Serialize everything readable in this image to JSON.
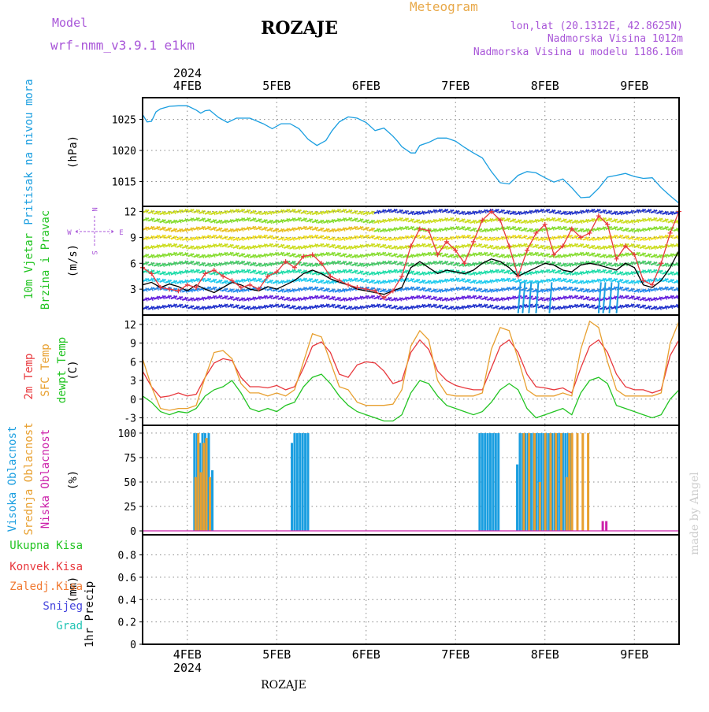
{
  "header": {
    "model_label": "Model",
    "model_name": "wrf-nmm_v3.9.1 e1km",
    "title": "ROZAJE",
    "meteogram": "Meteogram",
    "lonlat": "lon,lat (20.1312E, 42.8625N)",
    "altitude": "Nadmorska Visina 1012m",
    "model_altitude": "Nadmorska Visina u modelu 1186.16m",
    "year_top": "2024",
    "footer_name": "ROZAJE",
    "credit": "made by Angel"
  },
  "colors": {
    "pressure": "#1a9ee0",
    "temp2m": "#e8383d",
    "sfc": "#e8a030",
    "dewpt": "#22c422",
    "high_cloud": "#1a9ee0",
    "mid_cloud": "#e8a030",
    "low_cloud": "#cc22aa",
    "label_purple": "#a855d8",
    "label_orange": "#e8a848"
  },
  "chart_data": [
    {
      "panel": "pressure",
      "type": "line",
      "ylabel_lines": [
        "Pritisak na nivou mora"
      ],
      "unit": "(hPa)",
      "yticks": [
        1015,
        1020,
        1025
      ],
      "ylim": [
        1011,
        1028.5
      ],
      "x_days": [
        "4FEB",
        "5FEB",
        "6FEB",
        "7FEB",
        "8FEB",
        "9FEB"
      ],
      "xlim_days": [
        -0.5,
        5.5
      ],
      "grid": true,
      "series": [
        {
          "color": "#1a9ee0",
          "x": [
            -0.5,
            -0.45,
            -0.4,
            -0.35,
            -0.3,
            -0.2,
            -0.1,
            0.0,
            0.1,
            0.15,
            0.2,
            0.25,
            0.35,
            0.45,
            0.55,
            0.7,
            0.85,
            0.95,
            1.05,
            1.15,
            1.25,
            1.35,
            1.45,
            1.55,
            1.62,
            1.7,
            1.8,
            1.9,
            2.0,
            2.1,
            2.2,
            2.3,
            2.35,
            2.4,
            2.5,
            2.55,
            2.6,
            2.7,
            2.8,
            2.9,
            3.0,
            3.1,
            3.2,
            3.3,
            3.4,
            3.5,
            3.6,
            3.7,
            3.8,
            3.9,
            4.0,
            4.1,
            4.2,
            4.3,
            4.35,
            4.4,
            4.5,
            4.6,
            4.7,
            4.8,
            4.9,
            5.0,
            5.1,
            5.2,
            5.3,
            5.4,
            5.5
          ],
          "y": [
            1025.8,
            1024.6,
            1024.7,
            1026.2,
            1026.7,
            1027.1,
            1027.2,
            1027.2,
            1026.5,
            1026.0,
            1026.4,
            1026.5,
            1025.3,
            1024.5,
            1025.2,
            1025.2,
            1024.3,
            1023.5,
            1024.3,
            1024.3,
            1023.5,
            1021.8,
            1020.8,
            1021.6,
            1023.2,
            1024.6,
            1025.4,
            1025.2,
            1024.5,
            1023.2,
            1023.6,
            1022.3,
            1021.5,
            1020.6,
            1019.6,
            1019.6,
            1020.8,
            1021.3,
            1022.0,
            1022.0,
            1021.5,
            1020.5,
            1019.6,
            1018.8,
            1016.6,
            1014.8,
            1014.6,
            1016.0,
            1016.6,
            1016.4,
            1015.6,
            1014.9,
            1015.4,
            1014.0,
            1013.2,
            1012.4,
            1012.5,
            1013.9,
            1015.7,
            1016.0,
            1016.3,
            1015.8,
            1015.5,
            1015.6,
            1014.0,
            1012.7,
            1011.5
          ]
        }
      ]
    },
    {
      "panel": "wind",
      "type": "line",
      "ylabel_lines": [
        "10m Vjetar",
        "Brzina i Pravac"
      ],
      "unit": "(m/s)",
      "compass": {
        "n": "N",
        "s": "S",
        "w": "W",
        "e": "E"
      },
      "yticks": [
        3,
        6,
        9,
        12
      ],
      "ylim": [
        0,
        12.6
      ],
      "grid": true,
      "series": [
        {
          "name": "speed",
          "color": "#000000",
          "x": [
            -0.5,
            -0.4,
            -0.3,
            -0.2,
            -0.1,
            0.0,
            0.1,
            0.2,
            0.3,
            0.4,
            0.5,
            0.6,
            0.7,
            0.8,
            0.9,
            1.0,
            1.1,
            1.2,
            1.3,
            1.4,
            1.5,
            1.6,
            1.7,
            1.8,
            1.9,
            2.0,
            2.1,
            2.2,
            2.3,
            2.4,
            2.5,
            2.6,
            2.7,
            2.8,
            2.9,
            3.0,
            3.1,
            3.2,
            3.3,
            3.4,
            3.5,
            3.6,
            3.7,
            3.8,
            3.9,
            4.0,
            4.1,
            4.2,
            4.3,
            4.4,
            4.5,
            4.6,
            4.7,
            4.8,
            4.9,
            5.0,
            5.1,
            5.2,
            5.3,
            5.4,
            5.5
          ],
          "y": [
            3.5,
            3.8,
            3.2,
            3.6,
            3.3,
            2.8,
            3.5,
            3.0,
            2.6,
            3.2,
            3.8,
            3.5,
            3.0,
            2.8,
            3.3,
            3.0,
            3.5,
            4.0,
            4.8,
            5.2,
            4.8,
            4.2,
            3.8,
            3.5,
            3.0,
            2.8,
            2.6,
            2.4,
            2.8,
            3.2,
            5.5,
            6.2,
            5.5,
            4.8,
            5.2,
            5.0,
            4.8,
            5.2,
            6.0,
            6.5,
            6.2,
            5.5,
            4.5,
            5.0,
            5.5,
            6.0,
            5.8,
            5.2,
            5.0,
            5.8,
            6.0,
            5.8,
            5.5,
            5.2,
            6.0,
            5.5,
            3.5,
            3.2,
            4.0,
            5.5,
            7.5
          ]
        },
        {
          "name": "gust",
          "color": "#e8383d",
          "x": [
            -0.5,
            -0.4,
            -0.3,
            -0.2,
            -0.1,
            0.0,
            0.1,
            0.2,
            0.3,
            0.4,
            0.5,
            0.6,
            0.7,
            0.8,
            0.9,
            1.0,
            1.1,
            1.2,
            1.3,
            1.4,
            1.5,
            1.6,
            1.7,
            1.8,
            1.9,
            2.0,
            2.1,
            2.2,
            2.3,
            2.4,
            2.5,
            2.6,
            2.7,
            2.8,
            2.9,
            3.0,
            3.1,
            3.2,
            3.3,
            3.4,
            3.5,
            3.6,
            3.7,
            3.8,
            3.9,
            4.0,
            4.1,
            4.2,
            4.3,
            4.4,
            4.5,
            4.6,
            4.7,
            4.8,
            4.9,
            5.0,
            5.1,
            5.2,
            5.3,
            5.4,
            5.5
          ],
          "y": [
            5.5,
            4.8,
            3.2,
            3.0,
            2.8,
            3.5,
            3.2,
            4.8,
            5.2,
            4.5,
            4.0,
            3.2,
            3.5,
            3.0,
            4.5,
            5.0,
            6.2,
            5.5,
            6.8,
            7.0,
            6.0,
            4.5,
            4.0,
            3.5,
            3.2,
            3.0,
            2.8,
            2.0,
            2.8,
            4.5,
            8.0,
            10.0,
            9.8,
            7.0,
            8.5,
            7.5,
            6.0,
            8.5,
            11.0,
            12.0,
            11.0,
            8.0,
            4.5,
            7.5,
            9.5,
            10.5,
            7.0,
            8.0,
            10.0,
            9.0,
            9.5,
            11.5,
            10.5,
            6.5,
            8.0,
            7.0,
            4.0,
            3.5,
            6.0,
            9.5,
            12.0
          ]
        }
      ]
    },
    {
      "panel": "temperature",
      "type": "line",
      "ylabel_lines": [
        "2m Temp",
        "SFC Temp",
        "dewpt Temp"
      ],
      "unit": "(C)",
      "yticks": [
        -3,
        0,
        3,
        6,
        9,
        12
      ],
      "ylim": [
        -4.2,
        13.5
      ],
      "grid": true,
      "series": [
        {
          "name": "2m Temp",
          "color": "#e8383d",
          "x": [
            -0.5,
            -0.4,
            -0.3,
            -0.2,
            -0.1,
            0.0,
            0.1,
            0.2,
            0.3,
            0.4,
            0.5,
            0.6,
            0.7,
            0.8,
            0.9,
            1.0,
            1.1,
            1.2,
            1.3,
            1.4,
            1.5,
            1.6,
            1.7,
            1.8,
            1.9,
            2.0,
            2.1,
            2.2,
            2.3,
            2.4,
            2.5,
            2.6,
            2.7,
            2.8,
            2.9,
            3.0,
            3.1,
            3.2,
            3.3,
            3.4,
            3.5,
            3.6,
            3.7,
            3.8,
            3.9,
            4.0,
            4.1,
            4.2,
            4.3,
            4.4,
            4.5,
            4.6,
            4.7,
            4.8,
            4.9,
            5.0,
            5.1,
            5.2,
            5.3,
            5.4,
            5.5
          ],
          "y": [
            4.5,
            2.0,
            0.3,
            0.5,
            1.0,
            0.5,
            0.8,
            3.5,
            5.8,
            6.5,
            6.2,
            3.5,
            2.0,
            2.0,
            1.8,
            2.2,
            1.5,
            2.0,
            5.0,
            8.5,
            9.2,
            7.5,
            4.0,
            3.5,
            5.5,
            6.0,
            5.8,
            4.5,
            2.5,
            3.0,
            7.5,
            9.5,
            8.0,
            4.5,
            3.0,
            2.2,
            1.8,
            1.5,
            1.5,
            5.0,
            8.5,
            9.5,
            7.5,
            4.0,
            2.0,
            1.8,
            1.5,
            1.8,
            1.0,
            5.0,
            8.5,
            9.5,
            7.5,
            4.0,
            2.0,
            1.5,
            1.5,
            1.0,
            1.5,
            7.0,
            9.5
          ]
        },
        {
          "name": "SFC Temp",
          "color": "#e8a030",
          "x": [
            -0.5,
            -0.4,
            -0.3,
            -0.2,
            -0.1,
            0.0,
            0.1,
            0.2,
            0.3,
            0.4,
            0.5,
            0.6,
            0.7,
            0.8,
            0.9,
            1.0,
            1.1,
            1.2,
            1.3,
            1.4,
            1.5,
            1.6,
            1.7,
            1.8,
            1.9,
            2.0,
            2.1,
            2.2,
            2.3,
            2.4,
            2.5,
            2.6,
            2.7,
            2.8,
            2.9,
            3.0,
            3.1,
            3.2,
            3.3,
            3.4,
            3.5,
            3.6,
            3.7,
            3.8,
            3.9,
            4.0,
            4.1,
            4.2,
            4.3,
            4.4,
            4.5,
            4.6,
            4.7,
            4.8,
            4.9,
            5.0,
            5.1,
            5.2,
            5.3,
            5.4,
            5.5
          ],
          "y": [
            6.5,
            2.0,
            -1.5,
            -1.8,
            -1.5,
            -1.5,
            -1.0,
            3.5,
            7.5,
            7.8,
            6.5,
            2.5,
            1.0,
            1.0,
            0.5,
            1.0,
            0.5,
            1.5,
            6.0,
            10.5,
            10.0,
            6.0,
            2.0,
            1.5,
            -0.5,
            -1.0,
            -1.0,
            -1.0,
            -0.8,
            1.5,
            8.5,
            11.0,
            9.5,
            3.0,
            0.8,
            0.5,
            0.5,
            0.5,
            1.0,
            8.0,
            11.5,
            11.0,
            6.5,
            1.5,
            0.5,
            0.5,
            0.5,
            1.0,
            0.5,
            8.0,
            12.5,
            11.5,
            6.0,
            1.5,
            0.5,
            0.5,
            0.5,
            0.5,
            1.0,
            9.0,
            12.5
          ]
        },
        {
          "name": "dewpt Temp",
          "color": "#22c422",
          "x": [
            -0.5,
            -0.4,
            -0.3,
            -0.2,
            -0.1,
            0.0,
            0.1,
            0.2,
            0.3,
            0.4,
            0.5,
            0.6,
            0.7,
            0.8,
            0.9,
            1.0,
            1.1,
            1.2,
            1.3,
            1.4,
            1.5,
            1.6,
            1.7,
            1.8,
            1.9,
            2.0,
            2.1,
            2.2,
            2.3,
            2.4,
            2.5,
            2.6,
            2.7,
            2.8,
            2.9,
            3.0,
            3.1,
            3.2,
            3.3,
            3.4,
            3.5,
            3.6,
            3.7,
            3.8,
            3.9,
            4.0,
            4.1,
            4.2,
            4.3,
            4.4,
            4.5,
            4.6,
            4.7,
            4.8,
            4.9,
            5.0,
            5.1,
            5.2,
            5.3,
            5.4,
            5.5
          ],
          "y": [
            0.5,
            -0.5,
            -2.0,
            -2.5,
            -2.0,
            -2.2,
            -1.5,
            0.5,
            1.5,
            2.0,
            3.0,
            1.0,
            -1.5,
            -2.0,
            -1.5,
            -2.0,
            -1.0,
            -0.5,
            2.0,
            3.5,
            4.0,
            2.5,
            0.5,
            -1.0,
            -2.0,
            -2.5,
            -3.0,
            -3.5,
            -3.5,
            -2.5,
            1.0,
            3.0,
            2.5,
            0.5,
            -1.0,
            -1.5,
            -2.0,
            -2.5,
            -2.0,
            -0.5,
            1.5,
            2.5,
            1.5,
            -1.5,
            -3.0,
            -2.5,
            -2.0,
            -1.5,
            -2.5,
            1.0,
            3.0,
            3.5,
            2.5,
            -1.0,
            -1.5,
            -2.0,
            -2.5,
            -3.0,
            -2.5,
            0.0,
            1.5
          ]
        }
      ]
    },
    {
      "panel": "clouds",
      "type": "bar",
      "ylabel_lines": [
        "Visoka Oblacnost",
        "Srednja Oblacnost",
        "Niska Oblacnost"
      ],
      "unit": "(%)",
      "yticks": [
        0,
        25,
        50,
        75,
        100
      ],
      "ylim": [
        -4,
        108
      ],
      "grid": true,
      "series": [
        {
          "name": "Visoka Oblacnost",
          "color": "#1a9ee0",
          "x": [
            0.08,
            0.11,
            0.14,
            0.17,
            0.2,
            0.24,
            0.28,
            1.17,
            1.2,
            1.23,
            1.26,
            1.29,
            1.32,
            1.35,
            3.27,
            3.3,
            3.33,
            3.36,
            3.39,
            3.42,
            3.45,
            3.48,
            3.69,
            3.72,
            3.75,
            3.78,
            3.81,
            3.84,
            3.87,
            3.9,
            3.93,
            3.96,
            3.99,
            4.02,
            4.05,
            4.08,
            4.11,
            4.14,
            4.17,
            4.2,
            4.23,
            4.26,
            4.29
          ],
          "y": [
            100,
            100,
            90,
            100,
            100,
            100,
            62,
            90,
            100,
            100,
            100,
            100,
            100,
            100,
            100,
            100,
            100,
            100,
            100,
            100,
            100,
            100,
            68,
            100,
            100,
            100,
            100,
            100,
            100,
            100,
            100,
            100,
            100,
            100,
            100,
            100,
            100,
            100,
            100,
            100,
            100,
            100,
            100
          ]
        },
        {
          "name": "Srednja Oblacnost",
          "color": "#e8a030",
          "x": [
            0.08,
            0.11,
            0.14,
            0.17,
            0.2,
            0.24,
            3.75,
            3.81,
            3.87,
            3.93,
            3.99,
            4.05,
            4.11,
            4.17,
            4.23,
            4.26,
            4.29,
            4.35,
            4.41,
            4.47
          ],
          "y": [
            55,
            100,
            60,
            90,
            95,
            55,
            100,
            100,
            100,
            50,
            100,
            100,
            100,
            100,
            55,
            100,
            100,
            100,
            100,
            100
          ]
        },
        {
          "name": "Niska Oblacnost",
          "color": "#cc22aa",
          "x": [
            4.62,
            4.66
          ],
          "y": [
            10,
            10
          ]
        }
      ]
    },
    {
      "panel": "precip",
      "type": "bar",
      "ylabel_lines": [
        "1hr Precip"
      ],
      "unit": "(mm)",
      "legend": [
        {
          "name": "Ukupna Kisa",
          "color": "#22c422"
        },
        {
          "name": "Konvek.Kisa",
          "color": "#e8383d"
        },
        {
          "name": "Zaledj.Kisa",
          "color": "#f07830"
        },
        {
          "name": "Snijeg",
          "color": "#4444dd"
        },
        {
          "name": "Grad",
          "color": "#22c4b4"
        }
      ],
      "yticks": [
        0,
        0.2,
        0.4,
        0.6,
        0.8
      ],
      "ylim": [
        0,
        0.98
      ],
      "grid": true,
      "series": []
    }
  ]
}
